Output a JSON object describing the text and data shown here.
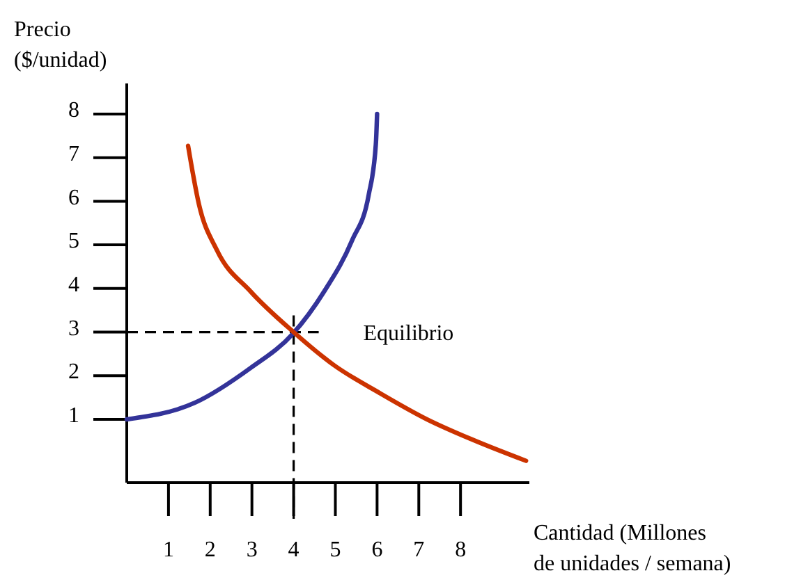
{
  "chart_data": {
    "type": "line",
    "ylabel": "Precio\n($/unidad)",
    "xlabel": "Cantidad (Millones\nde unidades / semana)",
    "xlim": [
      0,
      9.65
    ],
    "ylim": [
      -0.45,
      8.7
    ],
    "xticks": [
      1,
      2,
      3,
      4,
      5,
      6,
      7,
      8
    ],
    "yticks": [
      1,
      2,
      3,
      4,
      5,
      6,
      7,
      8
    ],
    "grid": false,
    "marker": "none",
    "line_style": "solid",
    "series": [
      {
        "color": "#333399",
        "x": [
          0,
          1.63,
          2.97,
          3.97,
          4.73,
          5.4,
          5.8,
          5.97,
          6
        ],
        "values": [
          1,
          1.38,
          2.18,
          2.95,
          3.93,
          5.1,
          6.15,
          7.3,
          8
        ]
      },
      {
        "color": "#cc3300",
        "x": [
          1.47,
          1.73,
          2.16,
          2.97,
          4,
          4.97,
          6.07,
          7.2,
          8.3,
          9.57
        ],
        "values": [
          7.27,
          5.93,
          4.88,
          3.93,
          3,
          2.24,
          1.6,
          1,
          0.53,
          0.05
        ]
      }
    ],
    "ref_lines": [
      {
        "axis": "y",
        "value": 3,
        "line_style": "dashed",
        "color": "#000000"
      },
      {
        "axis": "x",
        "value": 4,
        "line_style": "dashed",
        "color": "#000000"
      }
    ],
    "annotations": [
      "Equilibrio"
    ]
  }
}
